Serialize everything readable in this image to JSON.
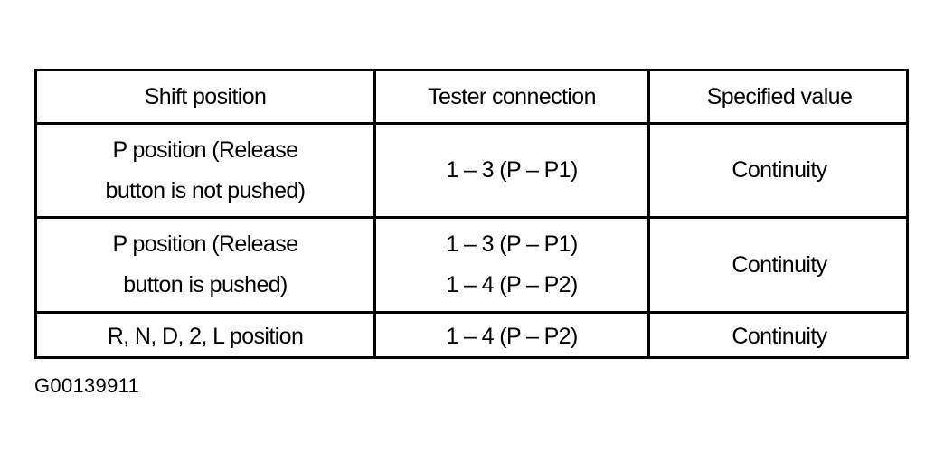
{
  "table": {
    "headers": [
      "Shift position",
      "Tester connection",
      "Specified value"
    ],
    "rows": [
      {
        "shift_position": [
          "P position (Release",
          "button is not pushed)"
        ],
        "tester_connection": [
          "1 – 3 (P – P1)"
        ],
        "specified_value": "Continuity"
      },
      {
        "shift_position": [
          "P position (Release",
          "button is pushed)"
        ],
        "tester_connection": [
          "1 – 3 (P – P1)",
          "1 – 4 (P – P2)"
        ],
        "specified_value": "Continuity"
      },
      {
        "shift_position": [
          "R, N, D, 2, L position"
        ],
        "tester_connection": [
          "1 – 4 (P – P2)"
        ],
        "specified_value": "Continuity"
      }
    ]
  },
  "caption": "G00139911"
}
